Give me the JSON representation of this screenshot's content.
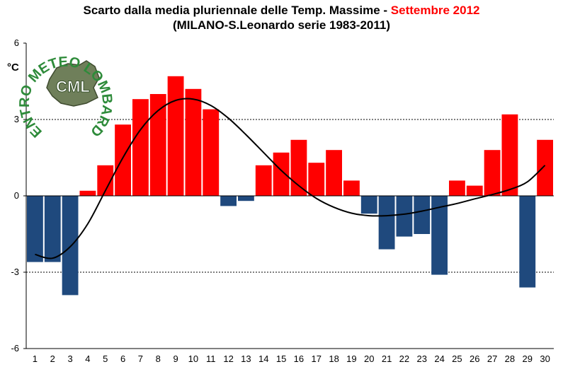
{
  "header": {
    "title_main": "Scarto dalla media pluriennale delle Temp. Massime - ",
    "title_accent": "Settembre 2012",
    "subtitle": "(MILANO-S.Leonardo serie 1983-2011)"
  },
  "logo": {
    "arc_text": "CENTRO METEO LOMBARDO",
    "center_text": "CML"
  },
  "colors": {
    "positive": "#ff0000",
    "negative": "#1f497d",
    "trend": "#000000",
    "logo_green": "#2e8b3a"
  },
  "chart_data": {
    "type": "bar",
    "title": "Scarto dalla media pluriennale delle Temp. Massime - Settembre 2012",
    "subtitle": "(MILANO-S.Leonardo serie 1983-2011)",
    "xlabel": "",
    "ylabel": "°C",
    "categories": [
      "1",
      "2",
      "3",
      "4",
      "5",
      "6",
      "7",
      "8",
      "9",
      "10",
      "11",
      "12",
      "13",
      "14",
      "15",
      "16",
      "17",
      "18",
      "19",
      "20",
      "21",
      "22",
      "23",
      "24",
      "25",
      "26",
      "27",
      "28",
      "29",
      "30"
    ],
    "values": [
      -2.6,
      -2.6,
      -3.9,
      0.2,
      1.2,
      2.8,
      3.8,
      4.0,
      4.7,
      4.2,
      3.4,
      -0.4,
      -0.2,
      1.2,
      1.7,
      2.2,
      1.3,
      1.8,
      0.6,
      -0.7,
      -2.1,
      -1.6,
      -1.5,
      -3.1,
      0.6,
      0.4,
      1.8,
      3.2,
      -3.6,
      2.2
    ],
    "trend": [
      -2.3,
      -2.45,
      -2.0,
      -1.1,
      0.2,
      1.5,
      2.6,
      3.35,
      3.75,
      3.8,
      3.55,
      3.05,
      2.4,
      1.7,
      1.0,
      0.4,
      -0.1,
      -0.45,
      -0.68,
      -0.78,
      -0.78,
      -0.72,
      -0.6,
      -0.45,
      -0.3,
      -0.12,
      0.05,
      0.25,
      0.55,
      1.2
    ],
    "ylim": [
      -6,
      6
    ],
    "yticks": [
      "6",
      "3",
      "0",
      "-3",
      "-6"
    ],
    "ytick_values": [
      6,
      3,
      0,
      -3,
      -6
    ],
    "grid": "dashed at ±3",
    "legend": "none"
  }
}
